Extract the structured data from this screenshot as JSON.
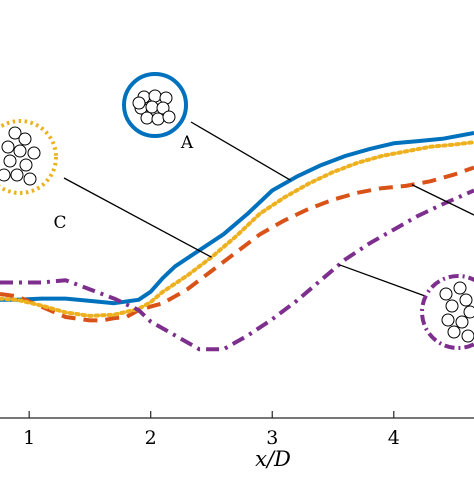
{
  "chart_data": {
    "type": "line",
    "xlabel": "x/D",
    "ylabel": "",
    "xlim": [
      0.76,
      4.66
    ],
    "ylim": [
      0,
      1
    ],
    "xticks": [
      1,
      2,
      3,
      4
    ],
    "xtick_labels": [
      "1",
      "2",
      "3",
      "4"
    ],
    "grid": false,
    "legend": "none",
    "series": [
      {
        "key": "A",
        "style": "solid",
        "color": "#0072BD",
        "x": [
          0.76,
          0.9,
          1.1,
          1.3,
          1.5,
          1.7,
          1.9,
          2.0,
          2.1,
          2.2,
          2.4,
          2.6,
          2.8,
          3.0,
          3.2,
          3.4,
          3.6,
          3.8,
          4.0,
          4.2,
          4.4,
          4.66
        ],
        "y": [
          0.175,
          0.175,
          0.18,
          0.18,
          0.17,
          0.16,
          0.175,
          0.21,
          0.27,
          0.32,
          0.39,
          0.46,
          0.55,
          0.65,
          0.71,
          0.76,
          0.8,
          0.83,
          0.855,
          0.865,
          0.875,
          0.9
        ]
      },
      {
        "key": "B",
        "style": "dashed",
        "color": "#D95319",
        "x": [
          0.76,
          0.9,
          1.1,
          1.3,
          1.5,
          1.6,
          1.7,
          1.8,
          1.9,
          2.0,
          2.1,
          2.3,
          2.5,
          2.7,
          2.9,
          3.1,
          3.3,
          3.5,
          3.7,
          3.9,
          4.1,
          4.3,
          4.5,
          4.66
        ],
        "y": [
          0.2,
          0.19,
          0.145,
          0.1,
          0.085,
          0.085,
          0.095,
          0.1,
          0.13,
          0.145,
          0.16,
          0.22,
          0.3,
          0.38,
          0.46,
          0.52,
          0.57,
          0.61,
          0.64,
          0.66,
          0.67,
          0.69,
          0.72,
          0.75
        ]
      },
      {
        "key": "C",
        "style": "dotted",
        "color": "#EDB120",
        "x": [
          0.76,
          0.9,
          1.1,
          1.3,
          1.5,
          1.7,
          1.9,
          2.0,
          2.1,
          2.3,
          2.5,
          2.7,
          2.9,
          3.1,
          3.3,
          3.5,
          3.7,
          3.9,
          4.1,
          4.3,
          4.5,
          4.66
        ],
        "y": [
          0.18,
          0.175,
          0.15,
          0.12,
          0.105,
          0.11,
          0.135,
          0.165,
          0.21,
          0.28,
          0.36,
          0.45,
          0.55,
          0.62,
          0.68,
          0.73,
          0.77,
          0.8,
          0.82,
          0.84,
          0.85,
          0.86
        ]
      },
      {
        "key": "D",
        "style": "dash-dot",
        "color": "#7E2F8E",
        "x": [
          0.76,
          0.9,
          1.1,
          1.3,
          1.5,
          1.7,
          1.9,
          2.0,
          2.1,
          2.2,
          2.4,
          2.6,
          2.8,
          3.0,
          3.2,
          3.4,
          3.6,
          3.8,
          4.0,
          4.2,
          4.4,
          4.66
        ],
        "y": [
          0.25,
          0.25,
          0.25,
          0.26,
          0.22,
          0.18,
          0.13,
          0.08,
          0.05,
          0.02,
          -0.04,
          -0.04,
          0.02,
          0.09,
          0.17,
          0.26,
          0.35,
          0.42,
          0.48,
          0.54,
          0.59,
          0.65
        ]
      }
    ],
    "annotations": [
      {
        "label": "A",
        "series": "A",
        "border": "solid",
        "color": "#0072BD"
      },
      {
        "label": "C",
        "series": "C",
        "border": "dotted",
        "color": "#EDB120"
      },
      {
        "label": "",
        "series": "B",
        "border": "none",
        "color": "#000000"
      },
      {
        "label": "",
        "series": "D",
        "border": "dash-dot",
        "color": "#7E2F8E"
      }
    ]
  }
}
